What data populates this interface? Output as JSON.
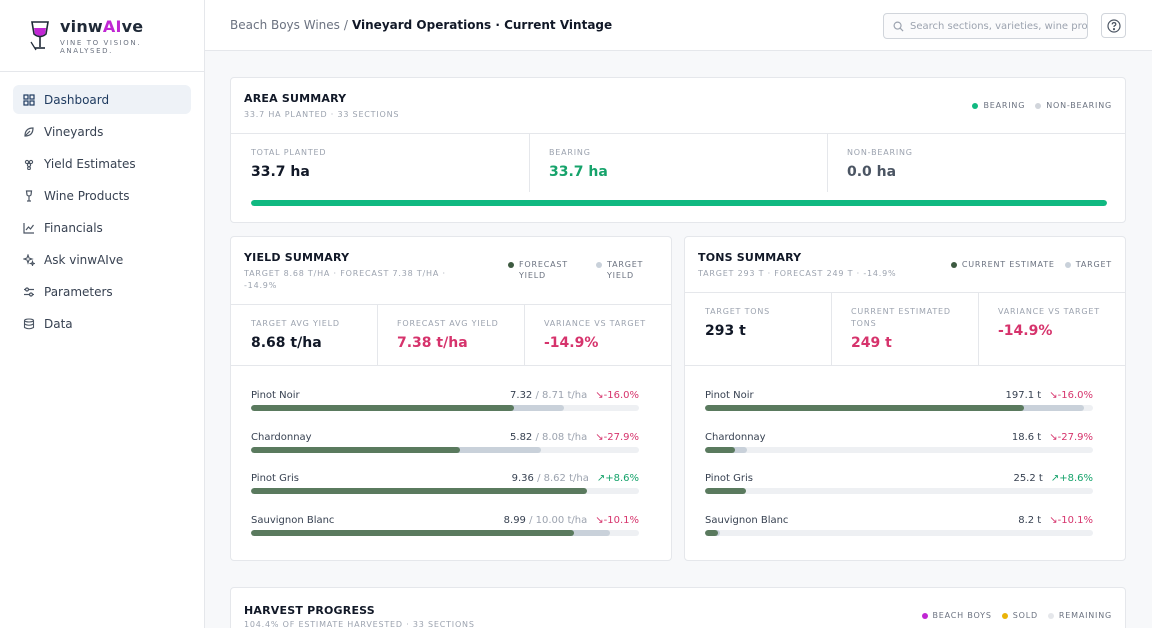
{
  "brand": {
    "name_pre": "vinw",
    "name_ai": "AI",
    "name_post": "ve",
    "tagline": "VINE TO VISION. ANALYSED."
  },
  "nav": [
    {
      "label": "Dashboard",
      "icon": "dashboard-icon",
      "active": true
    },
    {
      "label": "Vineyards",
      "icon": "leaf-icon",
      "active": false
    },
    {
      "label": "Yield Estimates",
      "icon": "grapes-icon",
      "active": false
    },
    {
      "label": "Wine Products",
      "icon": "wine-glass-icon",
      "active": false
    },
    {
      "label": "Financials",
      "icon": "line-chart-icon",
      "active": false
    },
    {
      "label": "Ask vinwAIve",
      "icon": "sparkle-icon",
      "active": false
    },
    {
      "label": "Parameters",
      "icon": "sliders-icon",
      "active": false
    },
    {
      "label": "Data",
      "icon": "database-icon",
      "active": false
    }
  ],
  "header": {
    "crumb_parent": "Beach Boys Wines",
    "crumb_sep": "/",
    "crumb_current": "Vineyard Operations · Current Vintage",
    "search_placeholder": "Search sections, varieties, wine products..."
  },
  "area": {
    "title": "AREA SUMMARY",
    "subtitle": "33.7 HA PLANTED · 33 SECTIONS",
    "legend": [
      {
        "label": "BEARING",
        "color": "#10b981"
      },
      {
        "label": "NON-BEARING",
        "color": "#d1d5db"
      }
    ],
    "stats": [
      {
        "label": "TOTAL PLANTED",
        "value": "33.7 ha"
      },
      {
        "label": "BEARING",
        "value": "33.7 ha"
      },
      {
        "label": "NON-BEARING",
        "value": "0.0 ha"
      }
    ],
    "bearing_fraction": 1.0
  },
  "yield": {
    "title": "YIELD SUMMARY",
    "subtitle": "TARGET 8.68 T/HA · FORECAST 7.38 T/HA · -14.9%",
    "legend": [
      {
        "label": "FORECAST YIELD",
        "color": "#3d5a40"
      },
      {
        "label": "TARGET YIELD",
        "color": "#c9d1da"
      }
    ],
    "stats": [
      {
        "label": "TARGET AVG YIELD",
        "value": "8.68 t/ha"
      },
      {
        "label": "FORECAST AVG YIELD",
        "value": "7.38 t/ha"
      },
      {
        "label": "VARIANCE VS TARGET",
        "value": "-14.9%"
      }
    ],
    "scale_max": 10.8,
    "rows": [
      {
        "name": "Pinot Noir",
        "actual": 7.32,
        "target": 8.71,
        "actual_text": "7.32",
        "target_text": "/ 8.71 t/ha",
        "var": "↘-16.0%",
        "up": false
      },
      {
        "name": "Chardonnay",
        "actual": 5.82,
        "target": 8.08,
        "actual_text": "5.82",
        "target_text": "/ 8.08 t/ha",
        "var": "↘-27.9%",
        "up": false
      },
      {
        "name": "Pinot Gris",
        "actual": 9.36,
        "target": 8.62,
        "actual_text": "9.36",
        "target_text": "/ 8.62 t/ha",
        "var": "↗+8.6%",
        "up": true
      },
      {
        "name": "Sauvignon Blanc",
        "actual": 8.99,
        "target": 10.0,
        "actual_text": "8.99",
        "target_text": "/ 10.00 t/ha",
        "var": "↘-10.1%",
        "up": false
      }
    ]
  },
  "tons": {
    "title": "TONS SUMMARY",
    "subtitle": "TARGET 293 T · FORECAST 249 T · -14.9%",
    "legend": [
      {
        "label": "CURRENT ESTIMATE",
        "color": "#3d5a40"
      },
      {
        "label": "TARGET",
        "color": "#c9d1da"
      }
    ],
    "stats": [
      {
        "label": "TARGET TONS",
        "value": "293 t"
      },
      {
        "label": "CURRENT ESTIMATED TONS",
        "value": "249 t"
      },
      {
        "label": "VARIANCE VS TARGET",
        "value": "-14.9%"
      }
    ],
    "scale_max": 240,
    "rows": [
      {
        "name": "Pinot Noir",
        "actual": 197.1,
        "target": 234.7,
        "value_text": "197.1 t",
        "var": "↘-16.0%",
        "up": false
      },
      {
        "name": "Chardonnay",
        "actual": 18.6,
        "target": 25.8,
        "value_text": "18.6 t",
        "var": "↘-27.9%",
        "up": false
      },
      {
        "name": "Pinot Gris",
        "actual": 25.2,
        "target": 23.2,
        "value_text": "25.2 t",
        "var": "↗+8.6%",
        "up": true
      },
      {
        "name": "Sauvignon Blanc",
        "actual": 8.2,
        "target": 9.1,
        "value_text": "8.2 t",
        "var": "↘-10.1%",
        "up": false
      }
    ]
  },
  "harvest": {
    "title": "HARVEST PROGRESS",
    "subtitle": "104.4% OF ESTIMATE HARVESTED · 33 SECTIONS",
    "legend": [
      {
        "label": "BEACH BOYS",
        "color": "#c026d3"
      },
      {
        "label": "SOLD",
        "color": "#eab308"
      },
      {
        "label": "REMAINING",
        "color": "#e5e7eb"
      }
    ]
  },
  "colors": {
    "accent": "#c026d3",
    "green": "#10b981",
    "red": "#d6336c",
    "bar_actual": "#5a7a5e",
    "bar_target": "#c9d1da"
  }
}
